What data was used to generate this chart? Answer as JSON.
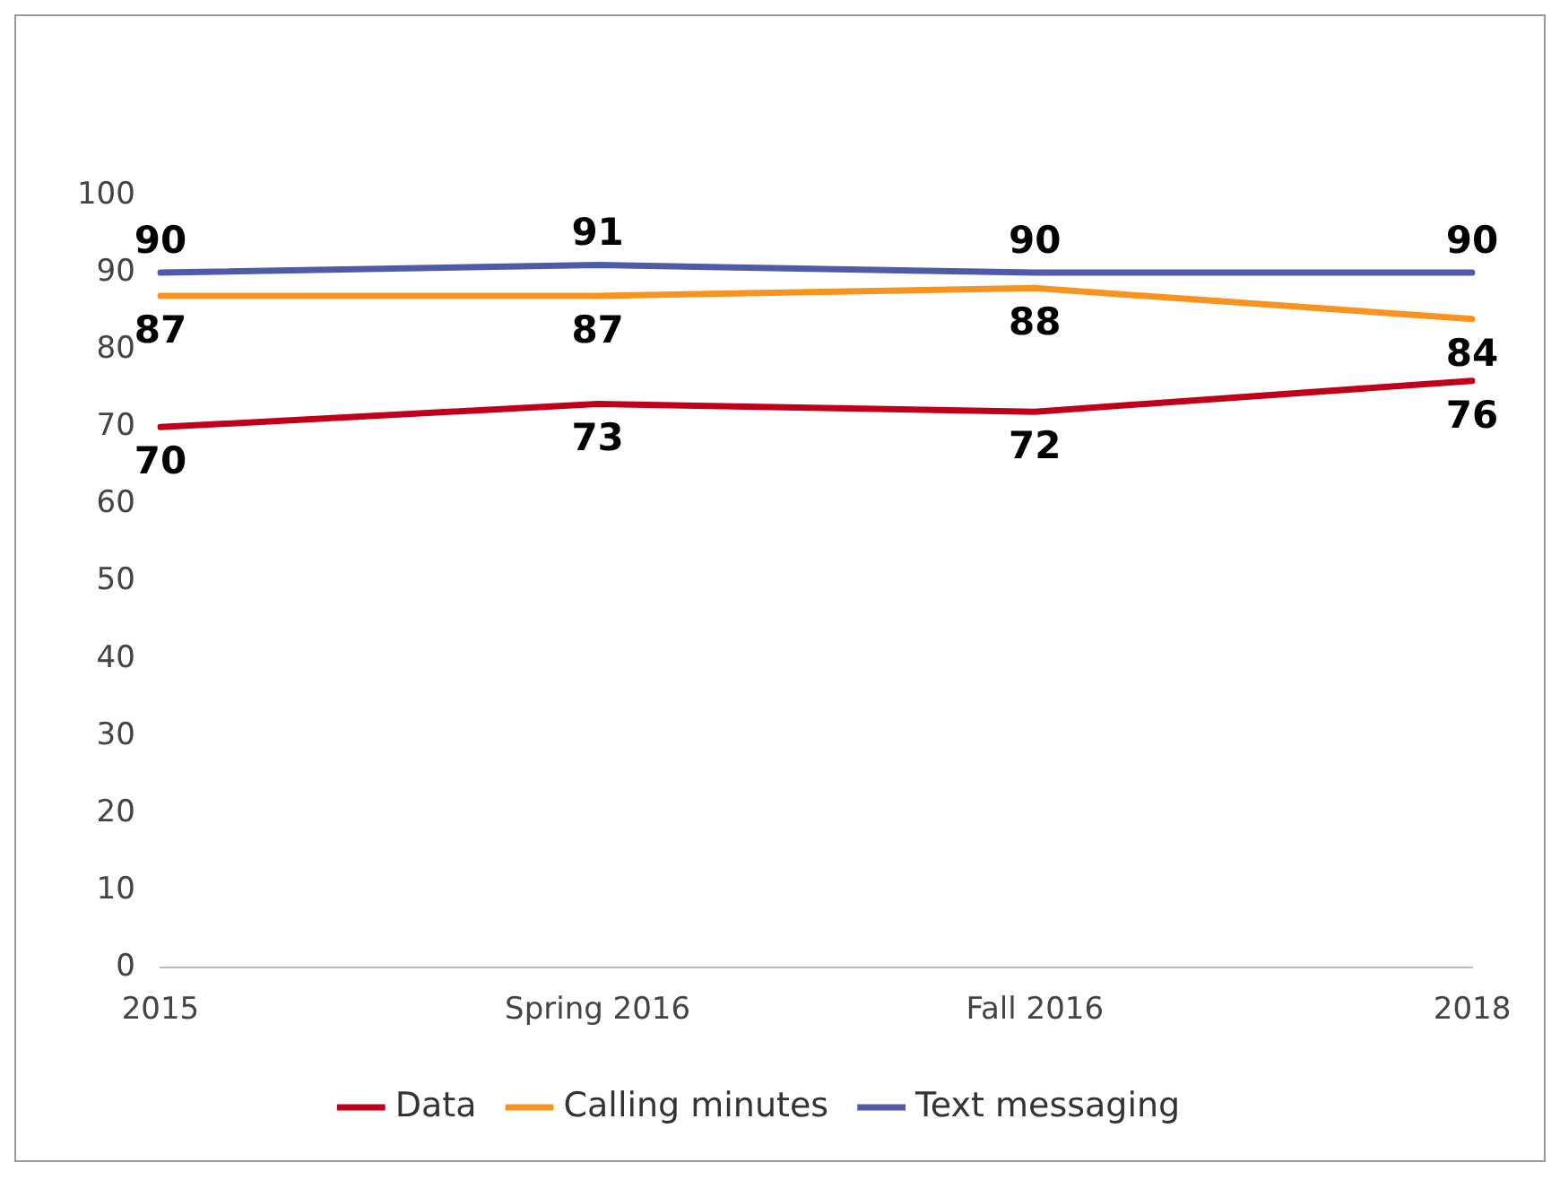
{
  "chart_data": {
    "type": "line",
    "categories": [
      "2015",
      "Spring 2016",
      "Fall 2016",
      "2018"
    ],
    "series": [
      {
        "name": "Data",
        "color": "#c0001a",
        "values": [
          70,
          73,
          72,
          76
        ]
      },
      {
        "name": "Calling minutes",
        "color": "#f7931e",
        "values": [
          87,
          87,
          88,
          84
        ]
      },
      {
        "name": "Text messaging",
        "color": "#4f5ba8",
        "values": [
          90,
          91,
          90,
          90
        ]
      }
    ],
    "ylim": [
      0,
      100
    ],
    "yticks": [
      0,
      10,
      20,
      30,
      40,
      50,
      60,
      70,
      80,
      90,
      100
    ],
    "grid": false,
    "legend": "bottom",
    "marker": "none",
    "line_style": "solid",
    "data_labels": true
  }
}
